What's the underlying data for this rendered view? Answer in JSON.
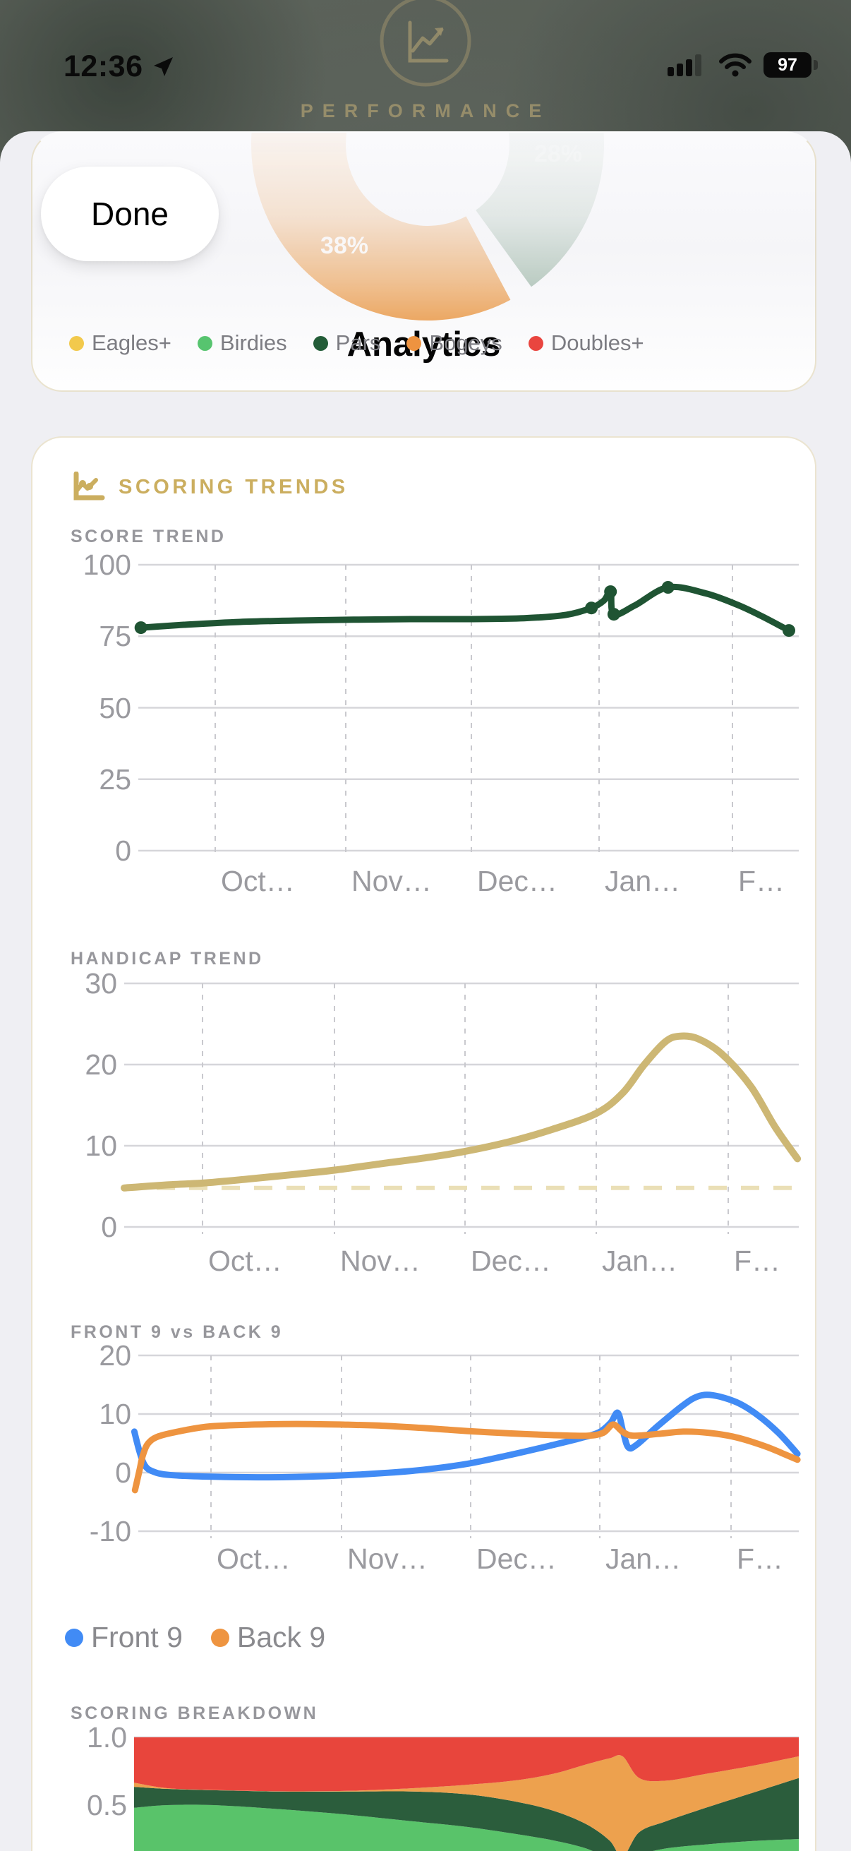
{
  "status_bar": {
    "time": "12:36",
    "battery": "97"
  },
  "background": {
    "app_title": "PERFORMANCE"
  },
  "nav": {
    "done_label": "Done",
    "title": "Analytics"
  },
  "donut": {
    "segments": [
      {
        "name": "pars",
        "color_top": "#C9D6CC",
        "color_bottom": "#7FA18E",
        "start": 44,
        "end": 144,
        "label": "28%",
        "label_opacity": 0.35
      },
      {
        "name": "bogeys",
        "color_top": "#F3BD88",
        "color_bottom": "#E68E35",
        "start": 152,
        "end": 287,
        "label": "38%",
        "label_opacity": 0.95
      }
    ]
  },
  "legend": {
    "items": [
      {
        "label": "Eagles+",
        "color": "#F2C94C"
      },
      {
        "label": "Birdies",
        "color": "#57C46F"
      },
      {
        "label": "Pars",
        "color": "#235C38"
      },
      {
        "label": "Bogeys",
        "color": "#EE9340"
      },
      {
        "label": "Doubles+",
        "color": "#E9453F"
      }
    ]
  },
  "section": {
    "title": "SCORING TRENDS"
  },
  "chart_data": [
    {
      "id": "score",
      "type": "line",
      "title": "SCORE TREND",
      "ylim": [
        0,
        100
      ],
      "yticks": [
        100,
        75,
        50,
        25,
        0
      ],
      "xticklabels": [
        "Oct…",
        "Nov…",
        "Dec…",
        "Jan…",
        "F…"
      ],
      "grid": true,
      "series": [
        {
          "name": "Score",
          "color": "#1F5433",
          "width": 9,
          "points": [
            [
              0.004,
              78
            ],
            [
              0.069,
              79
            ],
            [
              0.154,
              80
            ],
            [
              0.24,
              80.5
            ],
            [
              0.326,
              80.8
            ],
            [
              0.412,
              81
            ],
            [
              0.498,
              81
            ],
            [
              0.584,
              81.3
            ],
            [
              0.648,
              82.5
            ],
            [
              0.686,
              84.9
            ],
            [
              0.705,
              87.5
            ],
            [
              0.715,
              90.6
            ],
            [
              0.72,
              82.7
            ],
            [
              0.752,
              85.8
            ],
            [
              0.802,
              92.1
            ],
            [
              0.859,
              90
            ],
            [
              0.907,
              86
            ],
            [
              0.944,
              82
            ],
            [
              0.985,
              77
            ]
          ],
          "dot_indices": [
            0,
            9,
            11,
            12,
            14,
            18
          ],
          "dot_radius": 9
        }
      ]
    },
    {
      "id": "handicap",
      "type": "line",
      "title": "HANDICAP TREND",
      "ylim": [
        0,
        30
      ],
      "yticks": [
        30,
        20,
        10,
        0
      ],
      "xticklabels": [
        "Oct…",
        "Nov…",
        "Dec…",
        "Jan…",
        "F…"
      ],
      "grid": true,
      "ref_line": {
        "value": 4.8,
        "color": "#EADFB6"
      },
      "series": [
        {
          "name": "Handicap",
          "color": "#CDB774",
          "width": 10,
          "points": [
            [
              0,
              4.8
            ],
            [
              0.067,
              5.2
            ],
            [
              0.116,
              5.4
            ],
            [
              0.183,
              5.9
            ],
            [
              0.256,
              6.5
            ],
            [
              0.312,
              7
            ],
            [
              0.382,
              7.8
            ],
            [
              0.445,
              8.5
            ],
            [
              0.505,
              9.3
            ],
            [
              0.571,
              10.5
            ],
            [
              0.634,
              12
            ],
            [
              0.7,
              14
            ],
            [
              0.739,
              16.5
            ],
            [
              0.771,
              20
            ],
            [
              0.802,
              22.8
            ],
            [
              0.823,
              23.5
            ],
            [
              0.85,
              23.2
            ],
            [
              0.886,
              21.3
            ],
            [
              0.929,
              17.3
            ],
            [
              0.965,
              12.3
            ],
            [
              0.998,
              8.4
            ]
          ],
          "dot_indices": [],
          "dot_radius": 0
        }
      ]
    },
    {
      "id": "nines",
      "type": "line",
      "title": "FRONT 9 vs BACK 9",
      "ylim": [
        -10,
        20
      ],
      "yticks": [
        20,
        10,
        0,
        -10
      ],
      "xticklabels": [
        "Oct…",
        "Nov…",
        "Dec…",
        "Jan…",
        "F…"
      ],
      "grid": true,
      "legend": [
        {
          "label": "Front 9",
          "color": "#418BF5"
        },
        {
          "label": "Back 9",
          "color": "#EE9440"
        }
      ],
      "series": [
        {
          "name": "Front 9",
          "color": "#418BF5",
          "width": 9,
          "points": [
            [
              -0.006,
              7
            ],
            [
              0.002,
              3.5
            ],
            [
              0.01,
              1.2
            ],
            [
              0.022,
              0.2
            ],
            [
              0.047,
              -0.4
            ],
            [
              0.112,
              -0.7
            ],
            [
              0.197,
              -0.8
            ],
            [
              0.283,
              -0.6
            ],
            [
              0.369,
              -0.1
            ],
            [
              0.433,
              0.5
            ],
            [
              0.498,
              1.5
            ],
            [
              0.562,
              3
            ],
            [
              0.627,
              4.7
            ],
            [
              0.67,
              5.9
            ],
            [
              0.698,
              6.9
            ],
            [
              0.715,
              8.5
            ],
            [
              0.726,
              10.2
            ],
            [
              0.734,
              7
            ],
            [
              0.742,
              4.3
            ],
            [
              0.755,
              4.8
            ],
            [
              0.787,
              8
            ],
            [
              0.825,
              11.5
            ],
            [
              0.847,
              13
            ],
            [
              0.87,
              13.2
            ],
            [
              0.906,
              12
            ],
            [
              0.938,
              9.8
            ],
            [
              0.97,
              6.7
            ],
            [
              0.998,
              3.2
            ]
          ],
          "dot_indices": [],
          "dot_radius": 0
        },
        {
          "name": "Back 9",
          "color": "#EE9440",
          "width": 9,
          "points": [
            [
              -0.005,
              -3
            ],
            [
              0.002,
              0.5
            ],
            [
              0.007,
              3
            ],
            [
              0.015,
              5
            ],
            [
              0.031,
              6.2
            ],
            [
              0.069,
              7.2
            ],
            [
              0.11,
              7.9
            ],
            [
              0.176,
              8.2
            ],
            [
              0.24,
              8.3
            ],
            [
              0.305,
              8.2
            ],
            [
              0.369,
              8
            ],
            [
              0.433,
              7.6
            ],
            [
              0.498,
              7.1
            ],
            [
              0.562,
              6.7
            ],
            [
              0.627,
              6.4
            ],
            [
              0.68,
              6.3
            ],
            [
              0.704,
              6.8
            ],
            [
              0.719,
              8.2
            ],
            [
              0.734,
              6.9
            ],
            [
              0.75,
              6.3
            ],
            [
              0.787,
              6.6
            ],
            [
              0.825,
              7
            ],
            [
              0.863,
              6.8
            ],
            [
              0.906,
              6
            ],
            [
              0.949,
              4.5
            ],
            [
              0.975,
              3.3
            ],
            [
              0.998,
              2.2
            ]
          ],
          "dot_indices": [],
          "dot_radius": 0
        }
      ]
    },
    {
      "id": "breakdown",
      "type": "stacked_area",
      "title": "SCORING BREAKDOWN",
      "ylim": [
        0,
        1
      ],
      "yticks": [
        1.0,
        0.5
      ],
      "ytick_labels": [
        "1.0",
        "0.5"
      ],
      "x": [
        0,
        0.05,
        0.12,
        0.22,
        0.32,
        0.42,
        0.5,
        0.57,
        0.63,
        0.68,
        0.715,
        0.735,
        0.76,
        0.8,
        0.86,
        0.93,
        1
      ],
      "layers": [
        {
          "name": "Birdies",
          "color": "#59C36A",
          "top": [
            0.48,
            0.5,
            0.5,
            0.47,
            0.43,
            0.38,
            0.34,
            0.29,
            0.24,
            0.18,
            0.1,
            0.05,
            0.13,
            0.18,
            0.21,
            0.235,
            0.25
          ]
        },
        {
          "name": "Pars",
          "color": "#2B5D3C",
          "top": [
            0.635,
            0.62,
            0.61,
            0.6,
            0.6,
            0.6,
            0.58,
            0.53,
            0.46,
            0.36,
            0.24,
            0.12,
            0.3,
            0.38,
            0.48,
            0.59,
            0.7
          ]
        },
        {
          "name": "Bogeys",
          "color": "#EDA14E",
          "top": [
            0.665,
            0.625,
            0.612,
            0.602,
            0.605,
            0.625,
            0.65,
            0.68,
            0.73,
            0.8,
            0.845,
            0.86,
            0.7,
            0.68,
            0.73,
            0.79,
            0.86
          ]
        },
        {
          "name": "Doubles+",
          "color": "#E8453C",
          "top": [
            1,
            1,
            1,
            1,
            1,
            1,
            1,
            1,
            1,
            1,
            1,
            1,
            1,
            1,
            1,
            1,
            1
          ]
        }
      ]
    }
  ]
}
